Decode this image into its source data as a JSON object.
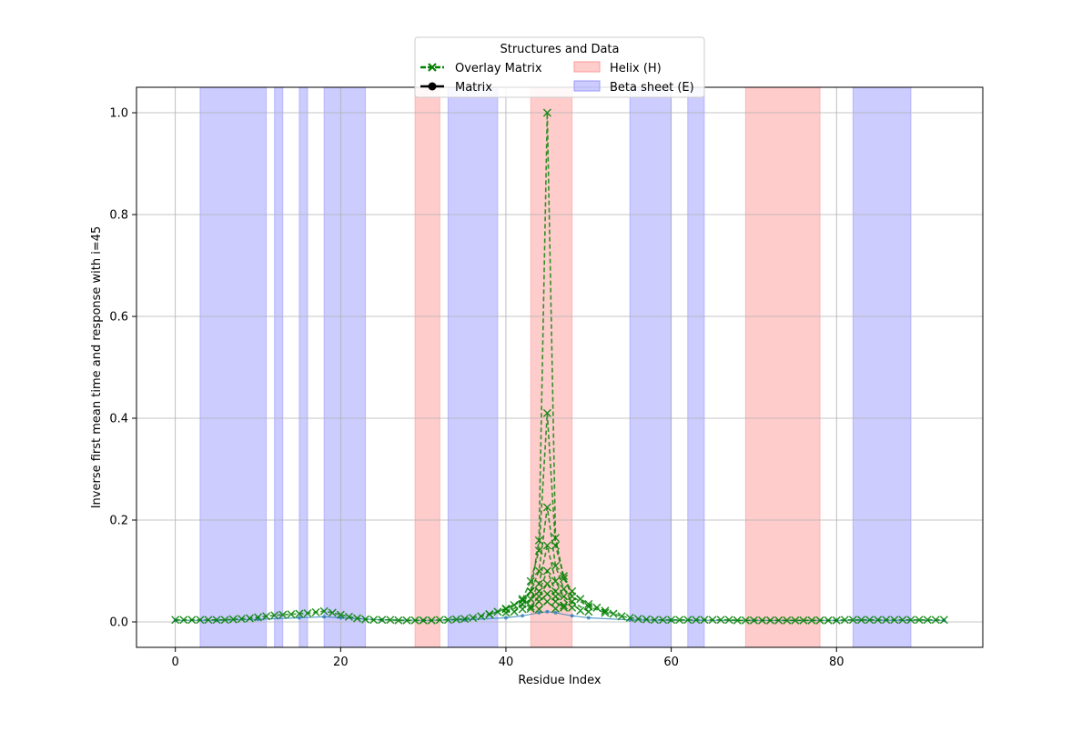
{
  "chart_data": {
    "type": "line",
    "xlabel": "Residue Index",
    "ylabel": "Inverse first mean time and response with i=45",
    "xlim": [
      -4.7,
      97.7
    ],
    "ylim": [
      -0.05,
      1.05
    ],
    "xticks": [
      0,
      20,
      40,
      60,
      80
    ],
    "yticks": [
      0.0,
      0.2,
      0.4,
      0.6,
      0.8,
      1.0
    ],
    "xtick_labels": [
      "0",
      "20",
      "40",
      "60",
      "80"
    ],
    "ytick_labels": [
      "0.0",
      "0.2",
      "0.4",
      "0.6",
      "0.8",
      "1.0"
    ],
    "grid": true,
    "legend": {
      "title": "Structures and Data",
      "placement": "top-center",
      "entries": [
        {
          "label": "Overlay Matrix",
          "kind": "line-x",
          "color": "#008000"
        },
        {
          "label": "Matrix",
          "kind": "line-dot",
          "color": "#000000"
        },
        {
          "label": "Helix (H)",
          "kind": "patch",
          "color": "#ff9999"
        },
        {
          "label": "Beta sheet (E)",
          "kind": "patch",
          "color": "#9999ff"
        }
      ]
    },
    "regions": [
      {
        "type": "E",
        "start": 3,
        "end": 11
      },
      {
        "type": "E",
        "start": 12,
        "end": 13
      },
      {
        "type": "E",
        "start": 15,
        "end": 16
      },
      {
        "type": "E",
        "start": 18,
        "end": 23
      },
      {
        "type": "H",
        "start": 29,
        "end": 32
      },
      {
        "type": "E",
        "start": 33,
        "end": 39
      },
      {
        "type": "H",
        "start": 43,
        "end": 48
      },
      {
        "type": "E",
        "start": 55,
        "end": 60
      },
      {
        "type": "E",
        "start": 62,
        "end": 64
      },
      {
        "type": "H",
        "start": 69,
        "end": 78
      },
      {
        "type": "E",
        "start": 82,
        "end": 89
      }
    ],
    "series": [
      {
        "name": "Matrix",
        "color": "#1f77b4",
        "x": [
          0,
          5,
          10,
          15,
          18,
          20,
          25,
          30,
          35,
          40,
          42,
          44,
          45,
          46,
          48,
          50,
          55,
          60,
          70,
          80,
          93
        ],
        "y": [
          0.003,
          0.003,
          0.005,
          0.008,
          0.01,
          0.008,
          0.004,
          0.003,
          0.004,
          0.008,
          0.012,
          0.018,
          0.02,
          0.018,
          0.012,
          0.008,
          0.004,
          0.003,
          0.003,
          0.003,
          0.003
        ]
      },
      {
        "name": "Overlay Matrix",
        "color": "#008000",
        "x": [
          0,
          1,
          2,
          3,
          4,
          5,
          6,
          7,
          8,
          9,
          10,
          11,
          12,
          13,
          14,
          15,
          16,
          17,
          18,
          19,
          20,
          21,
          22,
          23,
          24,
          25,
          26,
          27,
          28,
          29,
          30,
          31,
          32,
          33,
          34,
          35,
          36,
          37,
          38,
          39,
          40,
          41,
          42,
          43,
          44,
          45,
          46,
          47,
          48,
          49,
          50,
          51,
          52,
          53,
          54,
          55,
          56,
          57,
          58,
          59,
          60,
          61,
          62,
          63,
          64,
          65,
          66,
          67,
          68,
          69,
          70,
          71,
          72,
          73,
          74,
          75,
          76,
          77,
          78,
          79,
          80,
          81,
          82,
          83,
          84,
          85,
          86,
          87,
          88,
          89,
          90,
          91,
          92,
          93
        ],
        "y": [
          0.004,
          0.004,
          0.004,
          0.004,
          0.004,
          0.004,
          0.004,
          0.005,
          0.006,
          0.007,
          0.009,
          0.011,
          0.013,
          0.014,
          0.015,
          0.016,
          0.017,
          0.019,
          0.021,
          0.018,
          0.014,
          0.01,
          0.007,
          0.005,
          0.004,
          0.004,
          0.004,
          0.003,
          0.003,
          0.003,
          0.003,
          0.003,
          0.004,
          0.004,
          0.005,
          0.006,
          0.008,
          0.011,
          0.015,
          0.02,
          0.026,
          0.033,
          0.042,
          0.06,
          0.16,
          1.0,
          0.165,
          0.085,
          0.06,
          0.045,
          0.035,
          0.028,
          0.022,
          0.016,
          0.011,
          0.008,
          0.006,
          0.005,
          0.004,
          0.004,
          0.004,
          0.004,
          0.004,
          0.004,
          0.004,
          0.004,
          0.004,
          0.004,
          0.003,
          0.003,
          0.003,
          0.003,
          0.003,
          0.003,
          0.003,
          0.003,
          0.003,
          0.003,
          0.003,
          0.003,
          0.003,
          0.004,
          0.004,
          0.004,
          0.004,
          0.004,
          0.004,
          0.004,
          0.004,
          0.004,
          0.004,
          0.004,
          0.004,
          0.004
        ]
      },
      {
        "name": "Overlay Matrix",
        "color": "#008000",
        "x": [
          38,
          40,
          42,
          43,
          44,
          45,
          46,
          47,
          48,
          50,
          52
        ],
        "y": [
          0.015,
          0.025,
          0.045,
          0.08,
          0.14,
          0.41,
          0.15,
          0.09,
          0.05,
          0.03,
          0.018
        ]
      },
      {
        "name": "Overlay Matrix",
        "color": "#008000",
        "x": [
          40,
          42,
          43,
          44,
          45,
          46,
          47,
          48,
          50
        ],
        "y": [
          0.018,
          0.035,
          0.06,
          0.1,
          0.225,
          0.11,
          0.065,
          0.04,
          0.02
        ]
      },
      {
        "name": "Overlay Matrix",
        "color": "#008000",
        "x": [
          41,
          43,
          44,
          45,
          46,
          47,
          49
        ],
        "y": [
          0.02,
          0.045,
          0.075,
          0.15,
          0.08,
          0.05,
          0.022
        ]
      },
      {
        "name": "Overlay Matrix",
        "color": "#008000",
        "x": [
          42,
          44,
          45,
          46,
          48
        ],
        "y": [
          0.025,
          0.06,
          0.1,
          0.06,
          0.028
        ]
      },
      {
        "name": "Overlay Matrix",
        "color": "#008000",
        "x": [
          43,
          44,
          45,
          46,
          47
        ],
        "y": [
          0.03,
          0.05,
          0.075,
          0.05,
          0.032
        ]
      },
      {
        "name": "Overlay Matrix",
        "color": "#008000",
        "x": [
          43,
          44,
          45,
          46,
          47
        ],
        "y": [
          0.026,
          0.04,
          0.055,
          0.04,
          0.028
        ]
      },
      {
        "name": "Overlay Matrix",
        "color": "#008000",
        "x": [
          44,
          45,
          46
        ],
        "y": [
          0.025,
          0.04,
          0.026
        ]
      }
    ]
  }
}
